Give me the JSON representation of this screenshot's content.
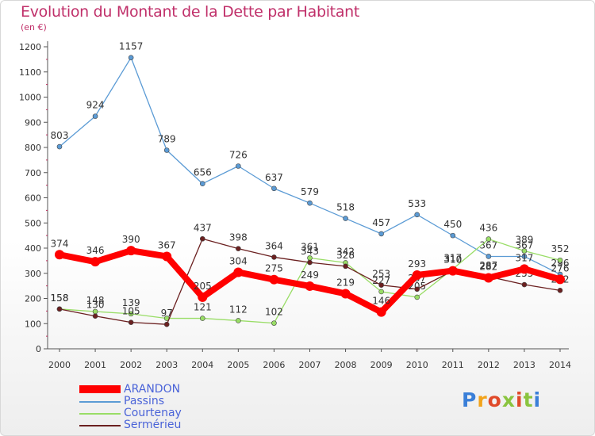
{
  "header": {
    "title": "Evolution du Montant de la Dette par Habitant",
    "unit": "(en €)"
  },
  "logo": {
    "text": "Proxiti",
    "colors": [
      "#3a7fd8",
      "#f2a31b",
      "#e04a2a",
      "#8ac43f",
      "#e04a2a",
      "#8ac43f",
      "#3a7fd8"
    ]
  },
  "chart_data": {
    "type": "line",
    "title": "Evolution du Montant de la Dette par Habitant",
    "ylabel": "(en €)",
    "x": [
      "2000",
      "2001",
      "2002",
      "2003",
      "2004",
      "2005",
      "2006",
      "2007",
      "2008",
      "2009",
      "2010",
      "2011",
      "2012",
      "2013",
      "2014"
    ],
    "ylim": [
      0,
      1200
    ],
    "yticks": [
      0,
      100,
      200,
      300,
      400,
      500,
      600,
      700,
      800,
      900,
      1000,
      1100,
      1200
    ],
    "grid": false,
    "legend": "bottom-left",
    "series": [
      {
        "name": "Passins",
        "color": "#5b9bd5",
        "values": [
          803,
          924,
          1157,
          789,
          656,
          726,
          637,
          579,
          518,
          457,
          533,
          450,
          367,
          367,
          296
        ],
        "labels": [
          "803",
          "924",
          "1157",
          "789",
          "656",
          "726",
          "637",
          "579",
          "518",
          "457",
          "533",
          "450",
          "367",
          "367",
          "296"
        ]
      },
      {
        "name": "Courtenay",
        "color": "#99dd66",
        "values": [
          158,
          148,
          139,
          121,
          121,
          112,
          102,
          361,
          342,
          227,
          205,
          317,
          436,
          389,
          352
        ],
        "labels": [
          "158",
          "148",
          "139",
          "",
          "121",
          "112",
          "102",
          "361",
          "342",
          "227",
          "205",
          "317",
          "436",
          "389",
          "352"
        ]
      },
      {
        "name": "Sermérieu",
        "color": "#6b2020",
        "values": [
          158,
          130,
          105,
          97,
          437,
          398,
          364,
          343,
          328,
          253,
          237,
          310,
          287,
          255,
          232
        ],
        "labels": [
          "158",
          "130",
          "105",
          "97",
          "437",
          "398",
          "364",
          "343",
          "328",
          "253",
          "237",
          "310",
          "287",
          "255",
          "232"
        ]
      },
      {
        "name": "ARANDON",
        "color": "#ff0000",
        "values": [
          374,
          346,
          390,
          367,
          205,
          304,
          275,
          249,
          219,
          146,
          293,
          310,
          282,
          317,
          276
        ],
        "labels": [
          "374",
          "346",
          "390",
          "367",
          "205",
          "304",
          "275",
          "249",
          "219",
          "146",
          "293",
          "310",
          "282",
          "317",
          "276"
        ]
      }
    ]
  },
  "legend": {
    "items": [
      {
        "label": "ARANDON",
        "color": "#ff0000",
        "thick": true
      },
      {
        "label": "Passins",
        "color": "#5b9bd5",
        "thick": false
      },
      {
        "label": "Courtenay",
        "color": "#99dd66",
        "thick": false
      },
      {
        "label": "Sermérieu",
        "color": "#6b2020",
        "thick": false
      }
    ]
  }
}
